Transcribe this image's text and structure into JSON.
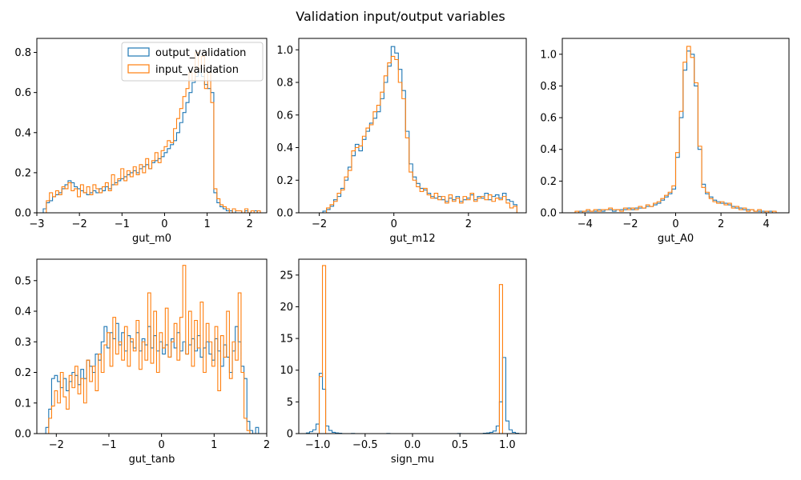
{
  "figure": {
    "title": "Validation input/output variables"
  },
  "colors": {
    "output_validation": "#1f77b4",
    "input_validation": "#ff7f0e"
  },
  "chart_data": [
    {
      "type": "histogram",
      "xlabel": "gut_m0",
      "xlim": [
        -3.0,
        2.4
      ],
      "ylim": [
        0,
        0.87
      ],
      "xticks": [
        -3,
        -2,
        -1,
        0,
        1,
        2
      ],
      "yticks": [
        0.0,
        0.2,
        0.4,
        0.6,
        0.8
      ],
      "legend": {
        "placement": "top-right",
        "entries": [
          "output_validation",
          "input_validation"
        ]
      },
      "series": [
        {
          "name": "output_validation",
          "bins": [
            -2.85,
            2.25
          ],
          "values": [
            0.02,
            0.05,
            0.06,
            0.08,
            0.09,
            0.1,
            0.12,
            0.14,
            0.16,
            0.15,
            0.13,
            0.12,
            0.11,
            0.1,
            0.09,
            0.1,
            0.11,
            0.1,
            0.12,
            0.11,
            0.13,
            0.12,
            0.14,
            0.15,
            0.16,
            0.17,
            0.18,
            0.19,
            0.2,
            0.21,
            0.2,
            0.22,
            0.23,
            0.24,
            0.22,
            0.25,
            0.26,
            0.27,
            0.28,
            0.3,
            0.32,
            0.34,
            0.36,
            0.4,
            0.45,
            0.5,
            0.55,
            0.6,
            0.65,
            0.68,
            0.7,
            0.68,
            0.64,
            0.62,
            0.6,
            0.1,
            0.05,
            0.03,
            0.02,
            0.01,
            0.01,
            0.0,
            0.01,
            0.01,
            0.0,
            0.01,
            0.0,
            0.01,
            0.01,
            0.0
          ]
        },
        {
          "name": "input_validation",
          "bins": [
            -2.85,
            2.25
          ],
          "values": [
            0.0,
            0.06,
            0.1,
            0.08,
            0.11,
            0.09,
            0.13,
            0.12,
            0.15,
            0.11,
            0.12,
            0.08,
            0.14,
            0.1,
            0.13,
            0.09,
            0.14,
            0.12,
            0.1,
            0.13,
            0.15,
            0.11,
            0.19,
            0.14,
            0.17,
            0.22,
            0.16,
            0.21,
            0.18,
            0.23,
            0.19,
            0.24,
            0.2,
            0.27,
            0.22,
            0.26,
            0.3,
            0.25,
            0.31,
            0.33,
            0.36,
            0.35,
            0.42,
            0.47,
            0.52,
            0.58,
            0.62,
            0.7,
            0.66,
            0.8,
            0.72,
            0.78,
            0.62,
            0.7,
            0.55,
            0.12,
            0.07,
            0.04,
            0.03,
            0.02,
            0.0,
            0.02,
            0.01,
            0.01,
            0.0,
            0.02,
            0.0,
            0.01,
            0.0,
            0.01
          ]
        }
      ]
    },
    {
      "type": "histogram",
      "xlabel": "gut_m12",
      "xlim": [
        -2.55,
        3.55
      ],
      "ylim": [
        0,
        1.07
      ],
      "xticks": [
        -2,
        0,
        2
      ],
      "yticks": [
        0.0,
        0.2,
        0.4,
        0.6,
        0.8,
        1.0
      ],
      "series": [
        {
          "name": "output_validation",
          "bins": [
            -2.0,
            3.3
          ],
          "values": [
            0.0,
            0.01,
            0.02,
            0.04,
            0.08,
            0.1,
            0.15,
            0.2,
            0.28,
            0.35,
            0.42,
            0.38,
            0.45,
            0.5,
            0.55,
            0.58,
            0.62,
            0.7,
            0.8,
            0.9,
            1.02,
            0.98,
            0.88,
            0.75,
            0.5,
            0.3,
            0.22,
            0.18,
            0.15,
            0.14,
            0.12,
            0.1,
            0.09,
            0.1,
            0.08,
            0.07,
            0.09,
            0.08,
            0.1,
            0.07,
            0.08,
            0.09,
            0.11,
            0.08,
            0.1,
            0.09,
            0.12,
            0.08,
            0.1,
            0.11,
            0.09,
            0.12,
            0.08,
            0.07,
            0.05
          ]
        },
        {
          "name": "input_validation",
          "bins": [
            -2.0,
            3.3
          ],
          "values": [
            0.0,
            0.0,
            0.03,
            0.05,
            0.07,
            0.12,
            0.14,
            0.22,
            0.26,
            0.38,
            0.4,
            0.41,
            0.47,
            0.52,
            0.54,
            0.62,
            0.66,
            0.74,
            0.84,
            0.92,
            0.96,
            0.94,
            0.8,
            0.7,
            0.46,
            0.25,
            0.2,
            0.16,
            0.13,
            0.15,
            0.11,
            0.09,
            0.12,
            0.08,
            0.1,
            0.06,
            0.11,
            0.07,
            0.09,
            0.06,
            0.1,
            0.08,
            0.12,
            0.07,
            0.09,
            0.1,
            0.08,
            0.11,
            0.07,
            0.09,
            0.08,
            0.1,
            0.06,
            0.03,
            0.04
          ]
        }
      ]
    },
    {
      "type": "histogram",
      "xlabel": "gut_A0",
      "xlim": [
        -5.0,
        5.0
      ],
      "ylim": [
        0,
        1.1
      ],
      "xticks": [
        -4,
        -2,
        0,
        2,
        4
      ],
      "yticks": [
        0.0,
        0.2,
        0.4,
        0.6,
        0.8,
        1.0
      ],
      "series": [
        {
          "name": "output_validation",
          "bins": [
            -4.6,
            4.6
          ],
          "values": [
            0.0,
            0.0,
            0.01,
            0.01,
            0.01,
            0.01,
            0.01,
            0.02,
            0.01,
            0.02,
            0.02,
            0.01,
            0.02,
            0.02,
            0.02,
            0.03,
            0.02,
            0.03,
            0.03,
            0.03,
            0.04,
            0.04,
            0.05,
            0.06,
            0.08,
            0.1,
            0.12,
            0.15,
            0.35,
            0.6,
            0.9,
            1.02,
            1.0,
            0.8,
            0.4,
            0.18,
            0.12,
            0.1,
            0.08,
            0.07,
            0.06,
            0.06,
            0.05,
            0.04,
            0.03,
            0.03,
            0.02,
            0.02,
            0.02,
            0.01,
            0.01,
            0.01,
            0.01,
            0.01,
            0.0,
            0.0
          ]
        },
        {
          "name": "input_validation",
          "bins": [
            -4.6,
            4.6
          ],
          "values": [
            0.0,
            0.01,
            0.0,
            0.01,
            0.02,
            0.01,
            0.02,
            0.01,
            0.02,
            0.02,
            0.03,
            0.02,
            0.02,
            0.01,
            0.03,
            0.02,
            0.03,
            0.02,
            0.04,
            0.03,
            0.05,
            0.04,
            0.06,
            0.07,
            0.09,
            0.11,
            0.13,
            0.17,
            0.38,
            0.64,
            0.95,
            1.05,
            0.98,
            0.82,
            0.42,
            0.16,
            0.13,
            0.09,
            0.07,
            0.06,
            0.07,
            0.05,
            0.06,
            0.03,
            0.04,
            0.02,
            0.03,
            0.01,
            0.02,
            0.01,
            0.02,
            0.0,
            0.01,
            0.0,
            0.01,
            0.0
          ]
        }
      ]
    },
    {
      "type": "histogram",
      "xlabel": "gut_tanb",
      "xlim": [
        -2.37,
        2.0
      ],
      "ylim": [
        0,
        0.57
      ],
      "xticks": [
        -2,
        -1,
        0,
        1,
        2
      ],
      "yticks": [
        0.0,
        0.1,
        0.2,
        0.3,
        0.4,
        0.5
      ],
      "series": [
        {
          "name": "output_validation",
          "bins": [
            -2.2,
            1.9
          ],
          "values": [
            0.02,
            0.08,
            0.18,
            0.19,
            0.17,
            0.15,
            0.18,
            0.14,
            0.17,
            0.2,
            0.19,
            0.16,
            0.21,
            0.18,
            0.24,
            0.22,
            0.2,
            0.26,
            0.24,
            0.3,
            0.35,
            0.28,
            0.33,
            0.31,
            0.36,
            0.29,
            0.33,
            0.27,
            0.32,
            0.3,
            0.28,
            0.33,
            0.27,
            0.31,
            0.29,
            0.35,
            0.28,
            0.32,
            0.27,
            0.3,
            0.26,
            0.29,
            0.25,
            0.31,
            0.28,
            0.33,
            0.27,
            0.3,
            0.26,
            0.29,
            0.31,
            0.27,
            0.32,
            0.25,
            0.28,
            0.3,
            0.26,
            0.24,
            0.31,
            0.27,
            0.22,
            0.29,
            0.25,
            0.2,
            0.27,
            0.35,
            0.3,
            0.22,
            0.18,
            0.04,
            0.01,
            0.0,
            0.02,
            0.0
          ]
        },
        {
          "name": "input_validation",
          "bins": [
            -2.2,
            1.9
          ],
          "values": [
            0.0,
            0.05,
            0.09,
            0.14,
            0.1,
            0.2,
            0.12,
            0.08,
            0.19,
            0.15,
            0.22,
            0.13,
            0.18,
            0.1,
            0.24,
            0.17,
            0.22,
            0.14,
            0.26,
            0.2,
            0.29,
            0.33,
            0.22,
            0.38,
            0.26,
            0.3,
            0.24,
            0.35,
            0.22,
            0.31,
            0.27,
            0.37,
            0.21,
            0.3,
            0.24,
            0.46,
            0.23,
            0.4,
            0.2,
            0.33,
            0.28,
            0.41,
            0.25,
            0.3,
            0.36,
            0.24,
            0.38,
            0.55,
            0.26,
            0.4,
            0.22,
            0.37,
            0.28,
            0.43,
            0.2,
            0.36,
            0.3,
            0.22,
            0.35,
            0.14,
            0.32,
            0.25,
            0.4,
            0.18,
            0.3,
            0.24,
            0.46,
            0.2,
            0.05,
            0.01,
            0.0,
            0.0,
            0.0,
            0.0
          ]
        }
      ]
    },
    {
      "type": "histogram",
      "xlabel": "sign_mu",
      "xlim": [
        -1.2,
        1.2
      ],
      "ylim": [
        0,
        27.5
      ],
      "xticks": [
        -1.0,
        -0.5,
        0.0,
        0.5,
        1.0
      ],
      "yticks": [
        0,
        5,
        10,
        15,
        20,
        25
      ],
      "series": [
        {
          "name": "output_validation",
          "bins": [
            -1.12,
            1.12
          ],
          "values": [
            0.1,
            0.3,
            0.6,
            1.5,
            9.5,
            7.0,
            1.2,
            0.5,
            0.2,
            0.1,
            0.05,
            0.0,
            0.0,
            0.0,
            0.02,
            0.0,
            0.0,
            0.0,
            0.0,
            0.0,
            0.0,
            0.0,
            0.0,
            0.0,
            0.0,
            0.02,
            0.0,
            0.0,
            0.0,
            0.0,
            0.0,
            0.0,
            0.0,
            0.0,
            0.0,
            0.0,
            0.0,
            0.0,
            0.0,
            0.0,
            0.0,
            0.0,
            0.0,
            0.0,
            0.0,
            0.0,
            0.0,
            0.02,
            0.0,
            0.0,
            0.0,
            0.0,
            0.0,
            0.0,
            0.0,
            0.05,
            0.1,
            0.2,
            0.4,
            1.2,
            5.0,
            12.0,
            2.0,
            0.6,
            0.2,
            0.05
          ]
        },
        {
          "name": "input_validation",
          "bins": [
            -1.12,
            1.12
          ],
          "values": [
            0.0,
            0.0,
            0.0,
            0.0,
            9.0,
            26.5,
            0.0,
            0.0,
            0.0,
            0.0,
            0.0,
            0.0,
            0.0,
            0.0,
            0.0,
            0.0,
            0.0,
            0.0,
            0.0,
            0.0,
            0.0,
            0.0,
            0.0,
            0.0,
            0.0,
            0.0,
            0.0,
            0.0,
            0.0,
            0.0,
            0.0,
            0.0,
            0.0,
            0.0,
            0.0,
            0.0,
            0.0,
            0.0,
            0.0,
            0.0,
            0.0,
            0.0,
            0.0,
            0.0,
            0.0,
            0.0,
            0.0,
            0.0,
            0.0,
            0.0,
            0.0,
            0.0,
            0.0,
            0.0,
            0.0,
            0.0,
            0.0,
            0.0,
            0.0,
            0.0,
            23.5,
            0.0,
            0.0,
            0.0,
            0.0,
            0.0
          ]
        }
      ]
    }
  ]
}
